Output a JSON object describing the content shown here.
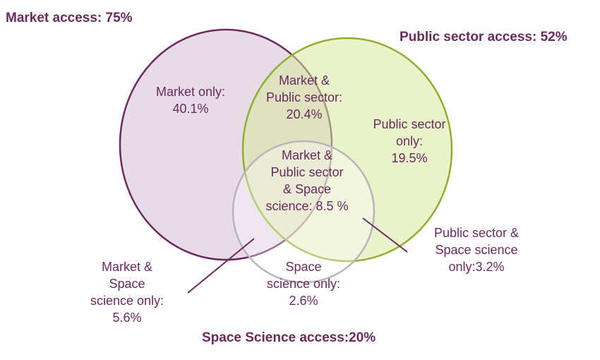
{
  "colors": {
    "market": "#6b2a5e",
    "public_sector": "#8fae2e",
    "space_science": "#b9b3bd",
    "label_text": "#6b2a5e"
  },
  "sets": {
    "market": {
      "title": "Market access: 75%",
      "value_percent": 75
    },
    "public_sector": {
      "title": "Public sector access: 52%",
      "value_percent": 52
    },
    "space_science": {
      "title": "Space Science access:20%",
      "value_percent": 20
    }
  },
  "regions": {
    "market_only": {
      "lines": [
        "Market only:",
        "40.1%"
      ],
      "value_percent": 40.1
    },
    "market_public": {
      "lines": [
        "Market &",
        "Public sector:",
        "20.4%"
      ],
      "value_percent": 20.4
    },
    "public_only": {
      "lines": [
        "Public sector",
        "only:",
        "19.5%"
      ],
      "value_percent": 19.5
    },
    "all_three": {
      "lines": [
        "Market &",
        "Public sector",
        "& Space",
        "science: 8.5 %"
      ],
      "value_percent": 8.5
    },
    "public_space": {
      "lines": [
        "Public sector &",
        "Space science",
        "only:3.2%"
      ],
      "value_percent": 3.2
    },
    "space_only": {
      "lines": [
        "Space",
        "science only:",
        "2.6%"
      ],
      "value_percent": 2.6
    },
    "market_space": {
      "lines": [
        "Market &",
        "Space",
        "science only:",
        "5.6%"
      ],
      "value_percent": 5.6
    }
  }
}
